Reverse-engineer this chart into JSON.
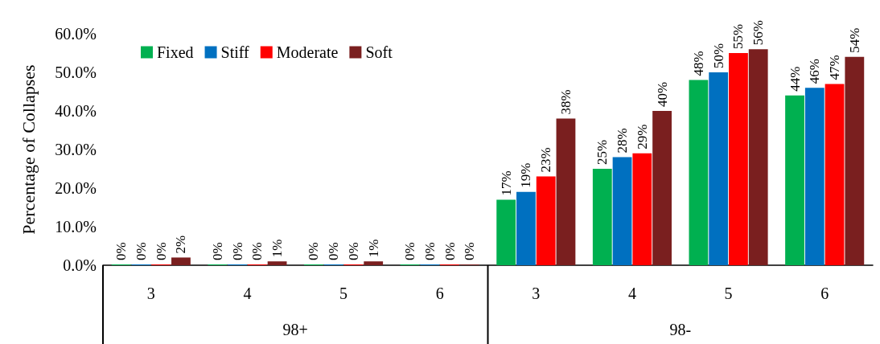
{
  "chart_data": {
    "type": "bar",
    "ylabel": "Percentage of Collapses",
    "categories": [
      "3",
      "4",
      "5",
      "6",
      "3",
      "4",
      "5",
      "6"
    ],
    "annotations": [
      "98+",
      "98-"
    ],
    "series": [
      {
        "name": "Fixed",
        "color": "#00b050",
        "values": [
          0,
          0,
          0,
          0,
          17,
          25,
          48,
          44
        ],
        "value_labels": [
          "0%",
          "0%",
          "0%",
          "0%",
          "17%",
          "25%",
          "48%",
          "44%"
        ]
      },
      {
        "name": "Stiff",
        "color": "#0070c0",
        "values": [
          0,
          0,
          0,
          0,
          19,
          28,
          50,
          46
        ],
        "value_labels": [
          "0%",
          "0%",
          "0%",
          "0%",
          "19%",
          "28%",
          "50%",
          "46%"
        ]
      },
      {
        "name": "Moderate",
        "color": "#ff0000",
        "values": [
          0,
          0,
          0,
          0,
          23,
          29,
          55,
          47
        ],
        "value_labels": [
          "0%",
          "0%",
          "0%",
          "0%",
          "23%",
          "29%",
          "55%",
          "47%"
        ]
      },
      {
        "name": "Soft",
        "color": "#7a1f1f",
        "values": [
          2,
          1,
          1,
          0,
          38,
          40,
          56,
          54
        ],
        "value_labels": [
          "2%",
          "1%",
          "1%",
          "0%",
          "38%",
          "40%",
          "56%",
          "54%"
        ]
      }
    ],
    "ylim": [
      0,
      60
    ],
    "yticks": [
      {
        "value": 0,
        "label": "0.0%"
      },
      {
        "value": 10,
        "label": "10.0%"
      },
      {
        "value": 20,
        "label": "20.0%"
      },
      {
        "value": 30,
        "label": "30.0%"
      },
      {
        "value": 40,
        "label": "40.0%"
      },
      {
        "value": 50,
        "label": "50.0%"
      },
      {
        "value": 60,
        "label": "60.0%"
      }
    ],
    "grid": false,
    "legend": "top left"
  }
}
